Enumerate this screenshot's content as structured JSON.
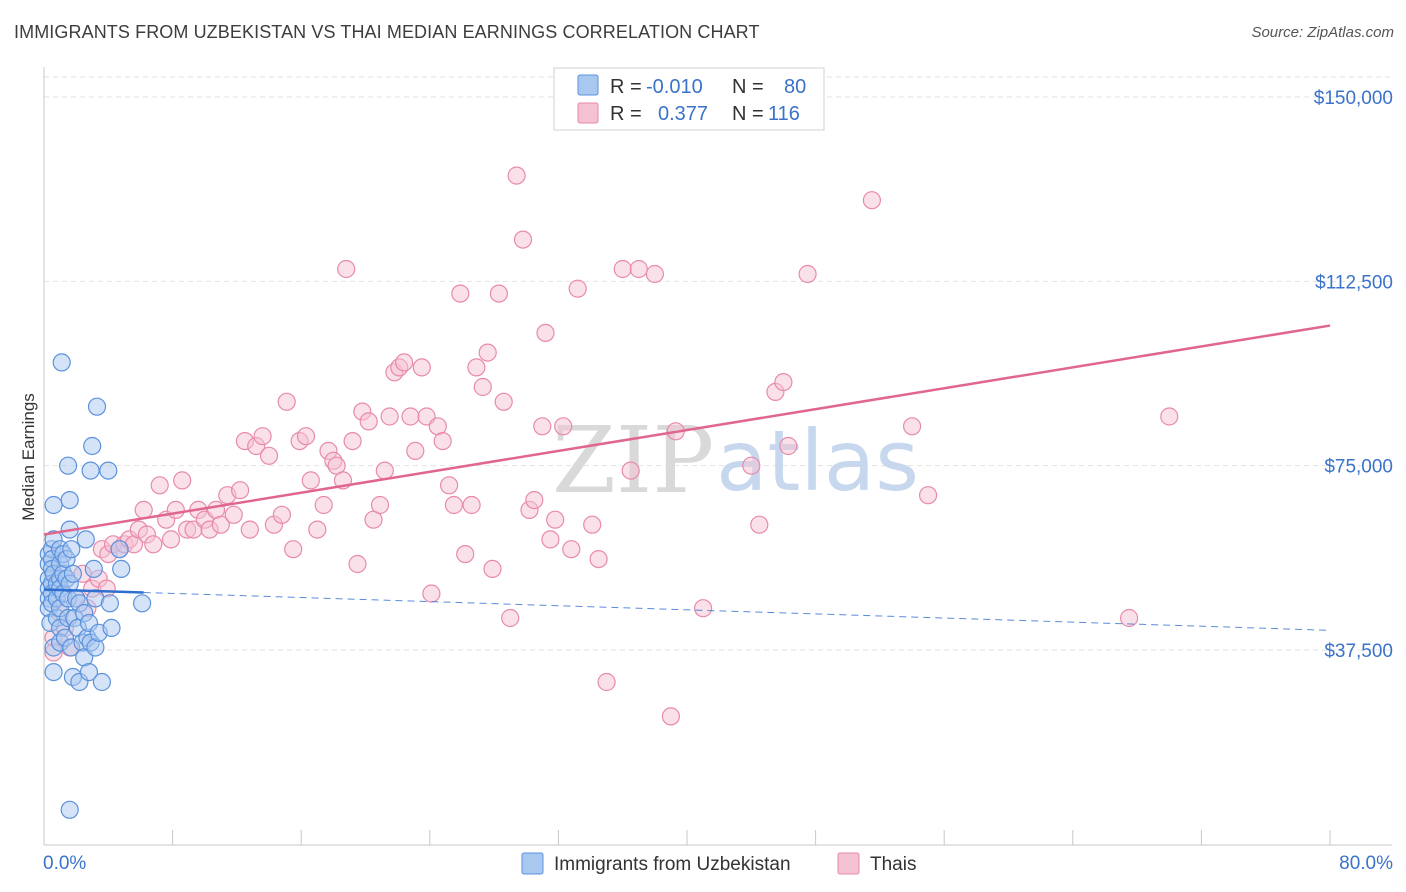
{
  "header": {
    "title": "IMMIGRANTS FROM UZBEKISTAN VS THAI MEDIAN EARNINGS CORRELATION CHART",
    "source": "Source: ZipAtlas.com"
  },
  "watermark": {
    "zip": "ZIP",
    "atlas": "atlas"
  },
  "colors": {
    "blue_fill": "#a9c8ef",
    "blue_stroke": "#5b92dc",
    "blue_line": "#2f6fd0",
    "pink_fill": "#f5c2d3",
    "pink_stroke": "#e88aab",
    "pink_line": "#e06690",
    "grid": "#e2e2e2",
    "axis_text": "#3a73c9"
  },
  "chart_data": {
    "type": "scatter",
    "title": "IMMIGRANTS FROM UZBEKISTAN VS THAI MEDIAN EARNINGS CORRELATION CHART",
    "xlabel": "",
    "ylabel": "Median Earnings",
    "xlim": [
      0,
      80
    ],
    "ylim": [
      0,
      155000
    ],
    "x_tick_labels": {
      "min": "0.0%",
      "max": "80.0%"
    },
    "y_ticks": [
      {
        "value": 37500,
        "label": "$37,500"
      },
      {
        "value": 75000,
        "label": "$75,000"
      },
      {
        "value": 112500,
        "label": "$112,500"
      },
      {
        "value": 150000,
        "label": "$150,000"
      }
    ],
    "legend": {
      "entries": [
        {
          "r_label": "R =",
          "r_value": "-0.010",
          "n_label": "N =",
          "n_value": "80"
        },
        {
          "r_label": "R =",
          "r_value": "0.377",
          "n_label": "N =",
          "n_value": "116"
        }
      ]
    },
    "series": [
      {
        "name": "Immigrants from Uzbekistan",
        "color": "blue",
        "trend": {
          "x0": 0,
          "y0": 49800,
          "x1": 6.2,
          "y1": 49200,
          "dash_x1": 80,
          "dash_y1": 41500
        },
        "points": [
          [
            0.3,
            57000
          ],
          [
            0.3,
            55000
          ],
          [
            0.3,
            52000
          ],
          [
            0.3,
            50000
          ],
          [
            0.3,
            48000
          ],
          [
            0.3,
            46000
          ],
          [
            0.4,
            43000
          ],
          [
            0.5,
            58000
          ],
          [
            0.5,
            56000
          ],
          [
            0.5,
            54000
          ],
          [
            0.5,
            51000
          ],
          [
            0.5,
            49000
          ],
          [
            0.5,
            47000
          ],
          [
            0.6,
            67000
          ],
          [
            0.6,
            60000
          ],
          [
            0.6,
            53000
          ],
          [
            0.6,
            38000
          ],
          [
            0.6,
            33000
          ],
          [
            0.8,
            51000
          ],
          [
            0.8,
            48000
          ],
          [
            0.8,
            44000
          ],
          [
            1.0,
            58000
          ],
          [
            1.0,
            55000
          ],
          [
            1.0,
            52000
          ],
          [
            1.0,
            50000
          ],
          [
            1.0,
            46000
          ],
          [
            1.0,
            42000
          ],
          [
            1.0,
            39000
          ],
          [
            1.1,
            96000
          ],
          [
            1.2,
            57000
          ],
          [
            1.2,
            53000
          ],
          [
            1.2,
            49000
          ],
          [
            1.3,
            40000
          ],
          [
            1.4,
            56000
          ],
          [
            1.4,
            52000
          ],
          [
            1.5,
            75000
          ],
          [
            1.5,
            48000
          ],
          [
            1.5,
            44000
          ],
          [
            1.6,
            68000
          ],
          [
            1.6,
            62000
          ],
          [
            1.6,
            51000
          ],
          [
            1.6,
            5000
          ],
          [
            1.7,
            58000
          ],
          [
            1.7,
            38000
          ],
          [
            1.8,
            32000
          ],
          [
            1.8,
            53000
          ],
          [
            1.9,
            44000
          ],
          [
            2.0,
            48000
          ],
          [
            2.1,
            42000
          ],
          [
            2.2,
            47000
          ],
          [
            2.2,
            31000
          ],
          [
            2.4,
            39000
          ],
          [
            2.5,
            36000
          ],
          [
            2.5,
            45000
          ],
          [
            2.6,
            60000
          ],
          [
            2.7,
            40000
          ],
          [
            2.8,
            33000
          ],
          [
            2.8,
            43000
          ],
          [
            2.9,
            74000
          ],
          [
            2.9,
            39000
          ],
          [
            3.0,
            79000
          ],
          [
            3.1,
            54000
          ],
          [
            3.2,
            38000
          ],
          [
            3.2,
            48000
          ],
          [
            3.3,
            87000
          ],
          [
            3.4,
            41000
          ],
          [
            3.6,
            31000
          ],
          [
            4.0,
            74000
          ],
          [
            4.1,
            47000
          ],
          [
            4.2,
            42000
          ],
          [
            4.7,
            58000
          ],
          [
            4.8,
            54000
          ],
          [
            6.1,
            47000
          ]
        ]
      },
      {
        "name": "Thais",
        "color": "pink",
        "trend": {
          "x0": 0,
          "y0": 61000,
          "x1": 80,
          "y1": 103500
        },
        "points": [
          [
            0.6,
            40000
          ],
          [
            0.6,
            37000
          ],
          [
            1.0,
            45000
          ],
          [
            1.3,
            42000
          ],
          [
            1.6,
            38000
          ],
          [
            2.0,
            48000
          ],
          [
            2.4,
            53000
          ],
          [
            2.7,
            46000
          ],
          [
            3.0,
            50000
          ],
          [
            3.4,
            52000
          ],
          [
            3.6,
            58000
          ],
          [
            3.9,
            50000
          ],
          [
            4.0,
            57000
          ],
          [
            4.3,
            59000
          ],
          [
            4.7,
            58000
          ],
          [
            5.0,
            59000
          ],
          [
            5.3,
            60000
          ],
          [
            5.6,
            59000
          ],
          [
            5.9,
            62000
          ],
          [
            6.2,
            66000
          ],
          [
            6.4,
            61000
          ],
          [
            6.8,
            59000
          ],
          [
            7.2,
            71000
          ],
          [
            7.6,
            64000
          ],
          [
            7.9,
            60000
          ],
          [
            8.2,
            66000
          ],
          [
            8.6,
            72000
          ],
          [
            8.9,
            62000
          ],
          [
            9.3,
            62000
          ],
          [
            9.6,
            66000
          ],
          [
            10.0,
            64000
          ],
          [
            10.3,
            62000
          ],
          [
            10.7,
            66000
          ],
          [
            11.0,
            63000
          ],
          [
            11.4,
            69000
          ],
          [
            11.8,
            65000
          ],
          [
            12.2,
            70000
          ],
          [
            12.5,
            80000
          ],
          [
            12.8,
            62000
          ],
          [
            13.2,
            79000
          ],
          [
            13.6,
            81000
          ],
          [
            14.0,
            77000
          ],
          [
            14.3,
            63000
          ],
          [
            14.8,
            65000
          ],
          [
            15.1,
            88000
          ],
          [
            15.5,
            58000
          ],
          [
            15.9,
            80000
          ],
          [
            16.3,
            81000
          ],
          [
            16.6,
            72000
          ],
          [
            17.0,
            62000
          ],
          [
            17.4,
            67000
          ],
          [
            17.7,
            78000
          ],
          [
            18.0,
            76000
          ],
          [
            18.2,
            75000
          ],
          [
            18.6,
            72000
          ],
          [
            18.8,
            115000
          ],
          [
            19.2,
            80000
          ],
          [
            19.5,
            55000
          ],
          [
            19.8,
            86000
          ],
          [
            20.2,
            84000
          ],
          [
            20.5,
            64000
          ],
          [
            20.9,
            67000
          ],
          [
            21.2,
            74000
          ],
          [
            21.5,
            85000
          ],
          [
            21.8,
            94000
          ],
          [
            22.1,
            95000
          ],
          [
            22.4,
            96000
          ],
          [
            22.8,
            85000
          ],
          [
            23.1,
            78000
          ],
          [
            23.5,
            95000
          ],
          [
            23.8,
            85000
          ],
          [
            24.1,
            49000
          ],
          [
            24.5,
            83000
          ],
          [
            24.8,
            80000
          ],
          [
            25.2,
            71000
          ],
          [
            25.5,
            67000
          ],
          [
            25.9,
            110000
          ],
          [
            26.2,
            57000
          ],
          [
            26.6,
            67000
          ],
          [
            26.9,
            95000
          ],
          [
            27.3,
            91000
          ],
          [
            27.6,
            98000
          ],
          [
            27.9,
            54000
          ],
          [
            28.3,
            110000
          ],
          [
            28.6,
            88000
          ],
          [
            29.0,
            44000
          ],
          [
            29.4,
            134000
          ],
          [
            29.8,
            121000
          ],
          [
            30.2,
            66000
          ],
          [
            30.5,
            68000
          ],
          [
            31.0,
            83000
          ],
          [
            31.2,
            102000
          ],
          [
            31.5,
            60000
          ],
          [
            31.8,
            64000
          ],
          [
            32.3,
            83000
          ],
          [
            32.8,
            58000
          ],
          [
            33.2,
            111000
          ],
          [
            34.1,
            63000
          ],
          [
            34.5,
            56000
          ],
          [
            35.0,
            31000
          ],
          [
            36.0,
            115000
          ],
          [
            36.5,
            74000
          ],
          [
            37.0,
            115000
          ],
          [
            38.0,
            114000
          ],
          [
            39.0,
            24000
          ],
          [
            39.3,
            82000
          ],
          [
            41.0,
            46000
          ],
          [
            44.0,
            75000
          ],
          [
            44.5,
            63000
          ],
          [
            45.5,
            90000
          ],
          [
            46.0,
            92000
          ],
          [
            46.3,
            79000
          ],
          [
            47.5,
            114000
          ],
          [
            51.5,
            129000
          ],
          [
            54.0,
            83000
          ],
          [
            55.0,
            69000
          ],
          [
            70.0,
            85000
          ],
          [
            67.5,
            44000
          ]
        ]
      }
    ],
    "bottom_legend": [
      {
        "label": "Immigrants from Uzbekistan",
        "color": "blue"
      },
      {
        "label": "Thais",
        "color": "pink"
      }
    ]
  }
}
